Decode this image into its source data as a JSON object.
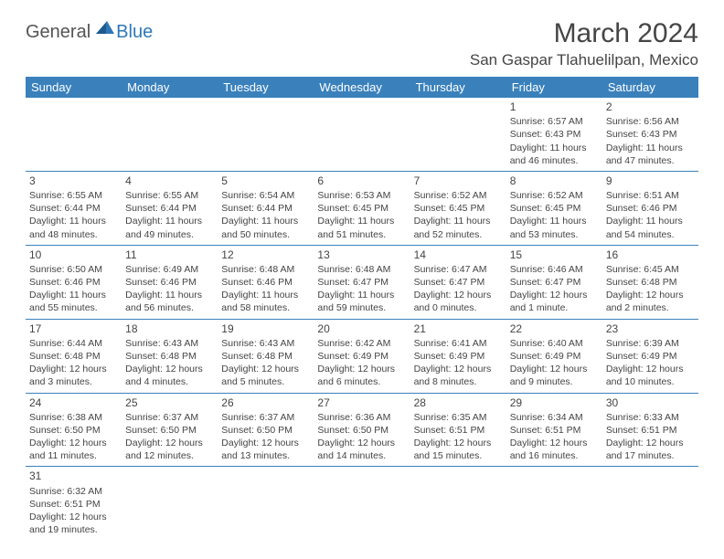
{
  "brand": {
    "general": "General",
    "blue": "Blue"
  },
  "title": "March 2024",
  "location": "San Gaspar Tlahuelilpan, Mexico",
  "colors": {
    "header_bg": "#3a81bc",
    "header_text": "#ffffff",
    "border": "#3a81bc",
    "text": "#444444",
    "title_text": "#454545",
    "logo_gray": "#545454",
    "logo_blue": "#2f78b7"
  },
  "dayHeaders": [
    "Sunday",
    "Monday",
    "Tuesday",
    "Wednesday",
    "Thursday",
    "Friday",
    "Saturday"
  ],
  "weeks": [
    [
      null,
      null,
      null,
      null,
      null,
      {
        "n": "1",
        "sr": "6:57 AM",
        "ss": "6:43 PM",
        "dl": "11 hours and 46 minutes."
      },
      {
        "n": "2",
        "sr": "6:56 AM",
        "ss": "6:43 PM",
        "dl": "11 hours and 47 minutes."
      }
    ],
    [
      {
        "n": "3",
        "sr": "6:55 AM",
        "ss": "6:44 PM",
        "dl": "11 hours and 48 minutes."
      },
      {
        "n": "4",
        "sr": "6:55 AM",
        "ss": "6:44 PM",
        "dl": "11 hours and 49 minutes."
      },
      {
        "n": "5",
        "sr": "6:54 AM",
        "ss": "6:44 PM",
        "dl": "11 hours and 50 minutes."
      },
      {
        "n": "6",
        "sr": "6:53 AM",
        "ss": "6:45 PM",
        "dl": "11 hours and 51 minutes."
      },
      {
        "n": "7",
        "sr": "6:52 AM",
        "ss": "6:45 PM",
        "dl": "11 hours and 52 minutes."
      },
      {
        "n": "8",
        "sr": "6:52 AM",
        "ss": "6:45 PM",
        "dl": "11 hours and 53 minutes."
      },
      {
        "n": "9",
        "sr": "6:51 AM",
        "ss": "6:46 PM",
        "dl": "11 hours and 54 minutes."
      }
    ],
    [
      {
        "n": "10",
        "sr": "6:50 AM",
        "ss": "6:46 PM",
        "dl": "11 hours and 55 minutes."
      },
      {
        "n": "11",
        "sr": "6:49 AM",
        "ss": "6:46 PM",
        "dl": "11 hours and 56 minutes."
      },
      {
        "n": "12",
        "sr": "6:48 AM",
        "ss": "6:46 PM",
        "dl": "11 hours and 58 minutes."
      },
      {
        "n": "13",
        "sr": "6:48 AM",
        "ss": "6:47 PM",
        "dl": "11 hours and 59 minutes."
      },
      {
        "n": "14",
        "sr": "6:47 AM",
        "ss": "6:47 PM",
        "dl": "12 hours and 0 minutes."
      },
      {
        "n": "15",
        "sr": "6:46 AM",
        "ss": "6:47 PM",
        "dl": "12 hours and 1 minute."
      },
      {
        "n": "16",
        "sr": "6:45 AM",
        "ss": "6:48 PM",
        "dl": "12 hours and 2 minutes."
      }
    ],
    [
      {
        "n": "17",
        "sr": "6:44 AM",
        "ss": "6:48 PM",
        "dl": "12 hours and 3 minutes."
      },
      {
        "n": "18",
        "sr": "6:43 AM",
        "ss": "6:48 PM",
        "dl": "12 hours and 4 minutes."
      },
      {
        "n": "19",
        "sr": "6:43 AM",
        "ss": "6:48 PM",
        "dl": "12 hours and 5 minutes."
      },
      {
        "n": "20",
        "sr": "6:42 AM",
        "ss": "6:49 PM",
        "dl": "12 hours and 6 minutes."
      },
      {
        "n": "21",
        "sr": "6:41 AM",
        "ss": "6:49 PM",
        "dl": "12 hours and 8 minutes."
      },
      {
        "n": "22",
        "sr": "6:40 AM",
        "ss": "6:49 PM",
        "dl": "12 hours and 9 minutes."
      },
      {
        "n": "23",
        "sr": "6:39 AM",
        "ss": "6:49 PM",
        "dl": "12 hours and 10 minutes."
      }
    ],
    [
      {
        "n": "24",
        "sr": "6:38 AM",
        "ss": "6:50 PM",
        "dl": "12 hours and 11 minutes."
      },
      {
        "n": "25",
        "sr": "6:37 AM",
        "ss": "6:50 PM",
        "dl": "12 hours and 12 minutes."
      },
      {
        "n": "26",
        "sr": "6:37 AM",
        "ss": "6:50 PM",
        "dl": "12 hours and 13 minutes."
      },
      {
        "n": "27",
        "sr": "6:36 AM",
        "ss": "6:50 PM",
        "dl": "12 hours and 14 minutes."
      },
      {
        "n": "28",
        "sr": "6:35 AM",
        "ss": "6:51 PM",
        "dl": "12 hours and 15 minutes."
      },
      {
        "n": "29",
        "sr": "6:34 AM",
        "ss": "6:51 PM",
        "dl": "12 hours and 16 minutes."
      },
      {
        "n": "30",
        "sr": "6:33 AM",
        "ss": "6:51 PM",
        "dl": "12 hours and 17 minutes."
      }
    ],
    [
      {
        "n": "31",
        "sr": "6:32 AM",
        "ss": "6:51 PM",
        "dl": "12 hours and 19 minutes."
      },
      null,
      null,
      null,
      null,
      null,
      null
    ]
  ],
  "labels": {
    "sunrise": "Sunrise:",
    "sunset": "Sunset:",
    "daylight": "Daylight:"
  }
}
